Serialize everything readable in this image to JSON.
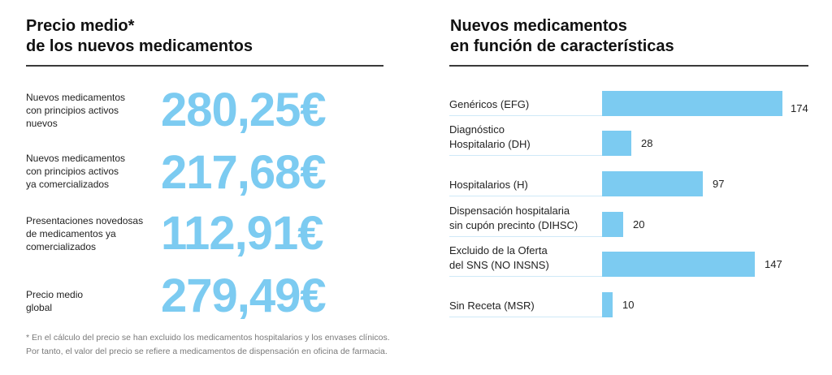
{
  "left_panel": {
    "title_line1": "Precio medio*",
    "title_line2": "de los nuevos medicamentos",
    "items": [
      {
        "label_lines": [
          "Nuevos medicamentos",
          "con principios activos",
          "nuevos"
        ],
        "value": "280,25€"
      },
      {
        "label_lines": [
          "Nuevos medicamentos",
          "con principios activos",
          "ya comercializados"
        ],
        "value": "217,68€"
      },
      {
        "label_lines": [
          "Presentaciones novedosas",
          "de medicamentos ya",
          "comercializados"
        ],
        "value": "112,91€"
      },
      {
        "label_lines": [
          "Precio medio",
          "global"
        ],
        "value": "279,49€"
      }
    ],
    "footnote_line1": "* En el cálculo del precio se han excluido los medicamentos hospitalarios y los envases clínicos.",
    "footnote_line2": "Por tanto, el valor del precio se refiere a medicamentos de dispensación en oficina de farmacia."
  },
  "colors": {
    "accent": "#7ccbf1",
    "text": "#222222",
    "footnote": "#7a7a7a"
  },
  "chart_data": {
    "type": "bar",
    "orientation": "horizontal",
    "title": "Nuevos medicamentos en función de características",
    "title_line1": "Nuevos medicamentos",
    "title_line2": "en función de características",
    "xlabel": "",
    "ylabel": "",
    "grid": false,
    "legend": "none",
    "categories": [
      [
        "Genéricos (EFG)"
      ],
      [
        "Diagnóstico",
        "Hospitalario (DH)"
      ],
      [
        "Hospitalarios (H)"
      ],
      [
        "Dispensación hospitalaria",
        "sin cupón precinto (DIHSC)"
      ],
      [
        "Excluido de la Oferta",
        "del SNS (NO INSNS)"
      ],
      [
        "Sin Receta (MSR)"
      ]
    ],
    "values": [
      174,
      28,
      97,
      20,
      147,
      10
    ],
    "value_labels": [
      "174",
      "28",
      "97",
      "20",
      "147",
      "10"
    ],
    "xlim": [
      0,
      174
    ]
  }
}
